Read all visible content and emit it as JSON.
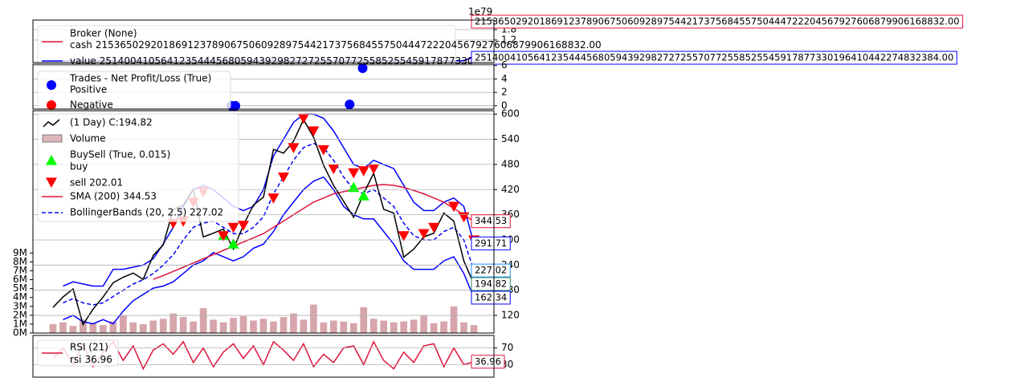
{
  "chart_data": [
    {
      "type": "broker",
      "title": "Broker (None)",
      "offset_label": "1e79",
      "ylim": [
        -1e+78,
        2.35e+79
      ],
      "yticks": [
        {
          "value": 1.2e+79,
          "label": "1.2"
        },
        {
          "value": 1.8e+79,
          "label": "1.8"
        }
      ],
      "grid": true,
      "series": [
        {
          "name": "cash",
          "color": "#dc143c",
          "x": [
            0,
            41,
            42
          ],
          "values": [
            10000,
            10000,
            2.153650292018691e+78
          ],
          "value_labels": [
            null,
            null,
            "21536502920186912378906750609289754421737568455750444722204567927606879906168832.00"
          ]
        },
        {
          "name": "value",
          "color": "#0000ff",
          "x": [
            0,
            41,
            42
          ],
          "values": [
            10000,
            10000,
            2.514004105641235e+78
          ],
          "value_labels": [
            null,
            null,
            "2514004105641235444568059439298272725570772558525545917877330196410442274832384.00"
          ]
        }
      ]
    },
    {
      "type": "trades",
      "title": "Trades - Net Profit/Loss (True)",
      "ylim": [
        -0.5,
        6.2
      ],
      "yticks": [
        0,
        2,
        4,
        6
      ],
      "grid": true,
      "series": [
        {
          "name": "Positive",
          "color": "#0000ff",
          "x": [
            17.8,
            18.2,
            29.6,
            30.9
          ],
          "values": [
            0,
            0,
            0.2,
            5.6
          ]
        },
        {
          "name": "Negative",
          "color": "#ff0000",
          "x": [],
          "values": []
        }
      ]
    },
    {
      "type": "price",
      "ylim": [
        78,
        608
      ],
      "yticks": [
        120,
        180,
        240,
        300,
        360,
        420,
        480,
        540,
        600
      ],
      "grid": true,
      "volume_ylim": [
        0,
        25
      ],
      "volume_yticks": [
        {
          "value": 0,
          "label": "0M"
        },
        {
          "value": 1,
          "label": "1M"
        },
        {
          "value": 2,
          "label": "2M"
        },
        {
          "value": 3,
          "label": "3M"
        },
        {
          "value": 4,
          "label": "4M"
        },
        {
          "value": 5,
          "label": "5M"
        },
        {
          "value": 6,
          "label": "6M"
        },
        {
          "value": 7,
          "label": "7M"
        },
        {
          "value": 8,
          "label": "8M"
        },
        {
          "value": 9,
          "label": "9M"
        }
      ],
      "close": {
        "name": " (1 Day) C:194.82",
        "color": "#000000",
        "values": [
          139,
          164,
          183,
          98,
          135,
          164,
          198,
          211,
          221,
          206,
          263,
          288,
          373,
          383,
          421,
          307,
          316,
          326,
          278,
          335,
          383,
          402,
          516,
          507,
          535,
          587,
          545,
          478,
          430,
          392,
          354,
          411,
          459,
          373,
          364,
          259,
          278,
          307,
          316,
          364,
          345,
          250,
          194.82
        ]
      },
      "volume": {
        "name": "Volume",
        "color": "#c98890",
        "values": [
          1.0,
          1.2,
          0.8,
          1.5,
          1.1,
          0.9,
          1.3,
          2.0,
          1.2,
          1.0,
          1.4,
          1.6,
          2.2,
          1.8,
          1.3,
          2.8,
          1.5,
          1.2,
          1.7,
          1.9,
          1.4,
          1.6,
          1.3,
          1.8,
          2.2,
          1.5,
          3.2,
          1.2,
          1.4,
          1.3,
          1.1,
          2.9,
          1.6,
          1.4,
          1.2,
          1.3,
          1.5,
          2.0,
          1.1,
          1.3,
          3.0,
          1.2,
          0.9
        ]
      },
      "buysell": {
        "title": "BuySell (True, 0.015)",
        "buy": {
          "name": "buy",
          "color": "#00ff00",
          "x": [
            17,
            18,
            30,
            31
          ],
          "values": [
            310,
            290,
            425,
            405
          ]
        },
        "sell": {
          "name": "sell 202.01",
          "color": "#ff0000",
          "x": [
            12,
            13,
            14,
            15,
            17,
            18,
            19,
            22,
            23,
            24,
            25,
            26,
            27,
            28,
            30,
            31,
            32,
            35,
            37,
            38,
            40,
            41,
            42
          ],
          "values": [
            340,
            345,
            390,
            415,
            310,
            330,
            335,
            400,
            450,
            520,
            590,
            560,
            515,
            470,
            460,
            465,
            470,
            310,
            315,
            330,
            380,
            355,
            300
          ]
        }
      },
      "sma": {
        "name": "SMA (200) 344.53",
        "color": "#dc143c",
        "values": [
          null,
          null,
          null,
          null,
          null,
          null,
          null,
          null,
          null,
          null,
          206,
          215,
          225,
          235,
          245,
          255,
          265,
          275,
          285,
          295,
          305,
          315,
          330,
          345,
          360,
          375,
          390,
          400,
          410,
          415,
          420,
          425,
          430,
          432,
          430,
          425,
          418,
          410,
          400,
          390,
          375,
          360,
          344.53
        ]
      },
      "bollinger": {
        "name": "BollingerBands (20, 2.5) 227.02",
        "color": "#0000ff",
        "mid": [
          null,
          150,
          160,
          150,
          145,
          150,
          165,
          180,
          195,
          205,
          220,
          240,
          265,
          300,
          330,
          340,
          345,
          330,
          315,
          315,
          330,
          355,
          410,
          450,
          490,
          520,
          530,
          520,
          490,
          450,
          420,
          410,
          420,
          400,
          380,
          340,
          310,
          300,
          300,
          320,
          330,
          300,
          227.02
        ],
        "top": [
          null,
          190,
          200,
          195,
          190,
          190,
          230,
          230,
          235,
          240,
          255,
          290,
          330,
          380,
          420,
          430,
          420,
          400,
          380,
          370,
          380,
          420,
          500,
          540,
          580,
          600,
          600,
          590,
          560,
          520,
          480,
          470,
          490,
          480,
          470,
          430,
          390,
          370,
          370,
          390,
          400,
          380,
          291.71
        ],
        "bot": [
          null,
          110,
          120,
          105,
          100,
          110,
          100,
          130,
          155,
          170,
          185,
          190,
          200,
          220,
          240,
          250,
          270,
          260,
          250,
          260,
          280,
          290,
          320,
          360,
          390,
          420,
          440,
          450,
          420,
          380,
          360,
          350,
          350,
          320,
          290,
          250,
          230,
          230,
          230,
          250,
          260,
          220,
          162.34
        ]
      }
    },
    {
      "type": "rsi",
      "title": "RSI (21)",
      "ylim": [
        0,
        100
      ],
      "yticks": [
        30,
        70
      ],
      "grid": true,
      "series": [
        {
          "name": "rsi",
          "color": "#dc143c",
          "values": [
            45,
            70,
            30,
            80,
            25,
            60,
            85,
            40,
            75,
            20,
            65,
            80,
            55,
            85,
            35,
            70,
            25,
            60,
            80,
            45,
            75,
            30,
            85,
            65,
            40,
            80,
            25,
            55,
            35,
            70,
            75,
            30,
            85,
            40,
            20,
            60,
            35,
            75,
            80,
            25,
            70,
            30,
            36.96
          ]
        }
      ]
    }
  ]
}
